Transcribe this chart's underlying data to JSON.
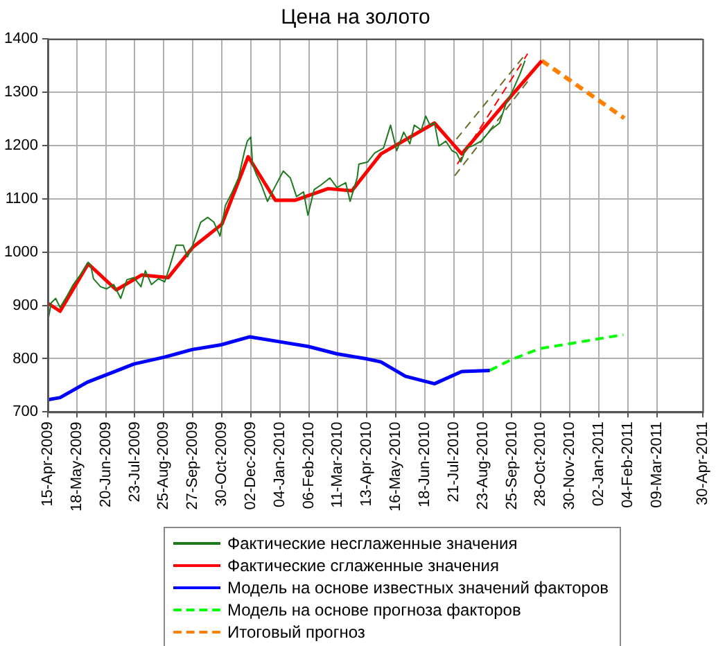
{
  "chart_data": {
    "type": "line",
    "title": "Цена на золото",
    "xlim": [
      "2009-04-15",
      "2011-04-30"
    ],
    "ylim": [
      700,
      1400
    ],
    "yticks": [
      700,
      800,
      900,
      1000,
      1100,
      1200,
      1300,
      1400
    ],
    "xticks": [
      {
        "value": "2009-04-15",
        "label": "15-Apr-2009"
      },
      {
        "value": "2009-05-18",
        "label": "18-May-2009"
      },
      {
        "value": "2009-06-20",
        "label": "20-Jun-2009"
      },
      {
        "value": "2009-07-23",
        "label": "23-Jul-2009"
      },
      {
        "value": "2009-08-25",
        "label": "25-Aug-2009"
      },
      {
        "value": "2009-09-27",
        "label": "27-Sep-2009"
      },
      {
        "value": "2009-10-30",
        "label": "30-Oct-2009"
      },
      {
        "value": "2009-12-02",
        "label": "02-Dec-2009"
      },
      {
        "value": "2010-01-04",
        "label": "04-Jan-2010"
      },
      {
        "value": "2010-02-06",
        "label": "06-Feb-2010"
      },
      {
        "value": "2010-03-11",
        "label": "11-Mar-2010"
      },
      {
        "value": "2010-04-13",
        "label": "13-Apr-2010"
      },
      {
        "value": "2010-05-16",
        "label": "16-May-2010"
      },
      {
        "value": "2010-06-18",
        "label": "18-Jun-2010"
      },
      {
        "value": "2010-07-21",
        "label": "21-Jul-2010"
      },
      {
        "value": "2010-08-23",
        "label": "23-Aug-2010"
      },
      {
        "value": "2010-09-25",
        "label": "25-Sep-2010"
      },
      {
        "value": "2010-10-28",
        "label": "28-Oct-2010"
      },
      {
        "value": "2010-11-30",
        "label": "30-Nov-2010"
      },
      {
        "value": "2011-01-02",
        "label": "02-Jan-2011"
      },
      {
        "value": "2011-02-04",
        "label": "04-Feb-2011"
      },
      {
        "value": "2011-03-09",
        "label": "09-Mar-2011"
      },
      {
        "value": "2011-04-30",
        "label": "30-Apr-2011"
      }
    ],
    "grid": true,
    "legend": "bottom",
    "series": [
      {
        "name": "Фактические несглаженные значения",
        "color": "#1f7a1f",
        "line_style": "solid",
        "x": [
          "2009-04-15",
          "2009-04-19",
          "2009-04-24",
          "2009-04-29",
          "2009-05-07",
          "2009-05-14",
          "2009-05-22",
          "2009-05-27",
          "2009-05-31",
          "2009-06-03",
          "2009-06-06",
          "2009-06-14",
          "2009-06-21",
          "2009-06-29",
          "2009-07-07",
          "2009-07-14",
          "2009-07-22",
          "2009-07-30",
          "2009-08-04",
          "2009-08-11",
          "2009-08-19",
          "2009-08-26",
          "2009-09-01",
          "2009-09-08",
          "2009-09-16",
          "2009-09-21",
          "2009-09-27",
          "2009-10-06",
          "2009-10-14",
          "2009-10-21",
          "2009-10-28",
          "2009-11-03",
          "2009-11-11",
          "2009-11-18",
          "2009-11-25",
          "2009-11-28",
          "2009-12-02",
          "2009-12-04",
          "2009-12-08",
          "2009-12-14",
          "2009-12-21",
          "2009-12-29",
          "2010-01-08",
          "2010-01-16",
          "2010-01-23",
          "2010-01-31",
          "2010-02-05",
          "2010-02-12",
          "2010-02-20",
          "2010-03-02",
          "2010-03-10",
          "2010-03-20",
          "2010-03-25",
          "2010-04-02",
          "2010-04-04",
          "2010-04-14",
          "2010-04-22",
          "2010-05-02",
          "2010-05-10",
          "2010-05-17",
          "2010-05-25",
          "2010-06-01",
          "2010-06-06",
          "2010-06-14",
          "2010-06-19",
          "2010-06-24",
          "2010-06-29",
          "2010-07-04",
          "2010-07-12",
          "2010-07-19",
          "2010-07-24",
          "2010-07-29",
          "2010-08-04",
          "2010-08-11",
          "2010-08-21",
          "2010-09-01",
          "2010-09-11",
          "2010-09-18",
          "2010-09-26",
          "2010-10-04",
          "2010-10-10"
        ],
        "values": [
          870,
          905,
          913,
          896,
          918,
          939,
          957,
          970,
          981,
          974,
          950,
          935,
          931,
          939,
          913,
          948,
          952,
          935,
          965,
          939,
          950,
          944,
          974,
          1013,
          1013,
          991,
          1013,
          1056,
          1065,
          1056,
          1030,
          1087,
          1113,
          1139,
          1190,
          1208,
          1216,
          1165,
          1147,
          1126,
          1095,
          1121,
          1152,
          1139,
          1104,
          1113,
          1069,
          1117,
          1126,
          1139,
          1121,
          1130,
          1095,
          1139,
          1165,
          1169,
          1186,
          1195,
          1238,
          1190,
          1225,
          1203,
          1238,
          1229,
          1255,
          1238,
          1242,
          1199,
          1208,
          1190,
          1186,
          1169,
          1195,
          1199,
          1208,
          1229,
          1242,
          1277,
          1303,
          1333,
          1359
        ]
      },
      {
        "name": "Фактические сглаженные значения",
        "color": "#ff0000",
        "line_style": "solid",
        "x": [
          "2009-04-15",
          "2009-04-29",
          "2009-05-31",
          "2009-07-02",
          "2009-07-31",
          "2009-08-30",
          "2009-09-27",
          "2009-10-30",
          "2009-11-29",
          "2009-12-30",
          "2010-01-21",
          "2010-02-28",
          "2010-03-27",
          "2010-04-29",
          "2010-06-29",
          "2010-07-30",
          "2010-09-16",
          "2010-10-29"
        ],
        "values": [
          904,
          889,
          978,
          929,
          957,
          952,
          1009,
          1052,
          1179,
          1097,
          1097,
          1119,
          1115,
          1184,
          1242,
          1184,
          1277,
          1359
        ]
      },
      {
        "name": "Модель на основе известных значений факторов",
        "color": "#0000ff",
        "line_style": "solid",
        "x": [
          "2009-04-15",
          "2009-04-29",
          "2009-05-30",
          "2009-07-02",
          "2009-07-22",
          "2009-08-26",
          "2009-09-26",
          "2009-10-29",
          "2009-12-01",
          "2010-01-03",
          "2010-02-05",
          "2010-03-10",
          "2010-04-12",
          "2010-04-29",
          "2010-05-27",
          "2010-06-29",
          "2010-07-30",
          "2010-08-31"
        ],
        "values": [
          723,
          727,
          756,
          777,
          790,
          803,
          817,
          826,
          841,
          832,
          823,
          809,
          800,
          794,
          767,
          753,
          776,
          778
        ]
      },
      {
        "name": "Модель на основе прогноза факторов",
        "color": "#00ff00",
        "line_style": "dashed",
        "x": [
          "2010-08-31",
          "2010-09-24",
          "2010-10-27",
          "2010-11-29",
          "2011-01-01",
          "2011-01-30"
        ],
        "values": [
          778,
          798,
          819,
          828,
          837,
          845
        ]
      },
      {
        "name": "Итоговый прогноз",
        "color": "#ff8000",
        "line_style": "dashed",
        "x": [
          "2010-10-29",
          "2011-01-31"
        ],
        "values": [
          1359,
          1251
        ]
      },
      {
        "color": "#6b6b2a",
        "line_style": "dashed",
        "x": [
          "2010-07-24",
          "2010-10-11"
        ],
        "values": [
          1212,
          1372
        ]
      },
      {
        "color": "#6b6b2a",
        "line_style": "dashed",
        "x": [
          "2010-07-22",
          "2010-10-13"
        ],
        "values": [
          1143,
          1320
        ]
      },
      {
        "color": "#ff0000",
        "line_style": "dashed",
        "x": [
          "2010-07-25",
          "2010-10-13"
        ],
        "values": [
          1165,
          1372
        ]
      }
    ]
  }
}
